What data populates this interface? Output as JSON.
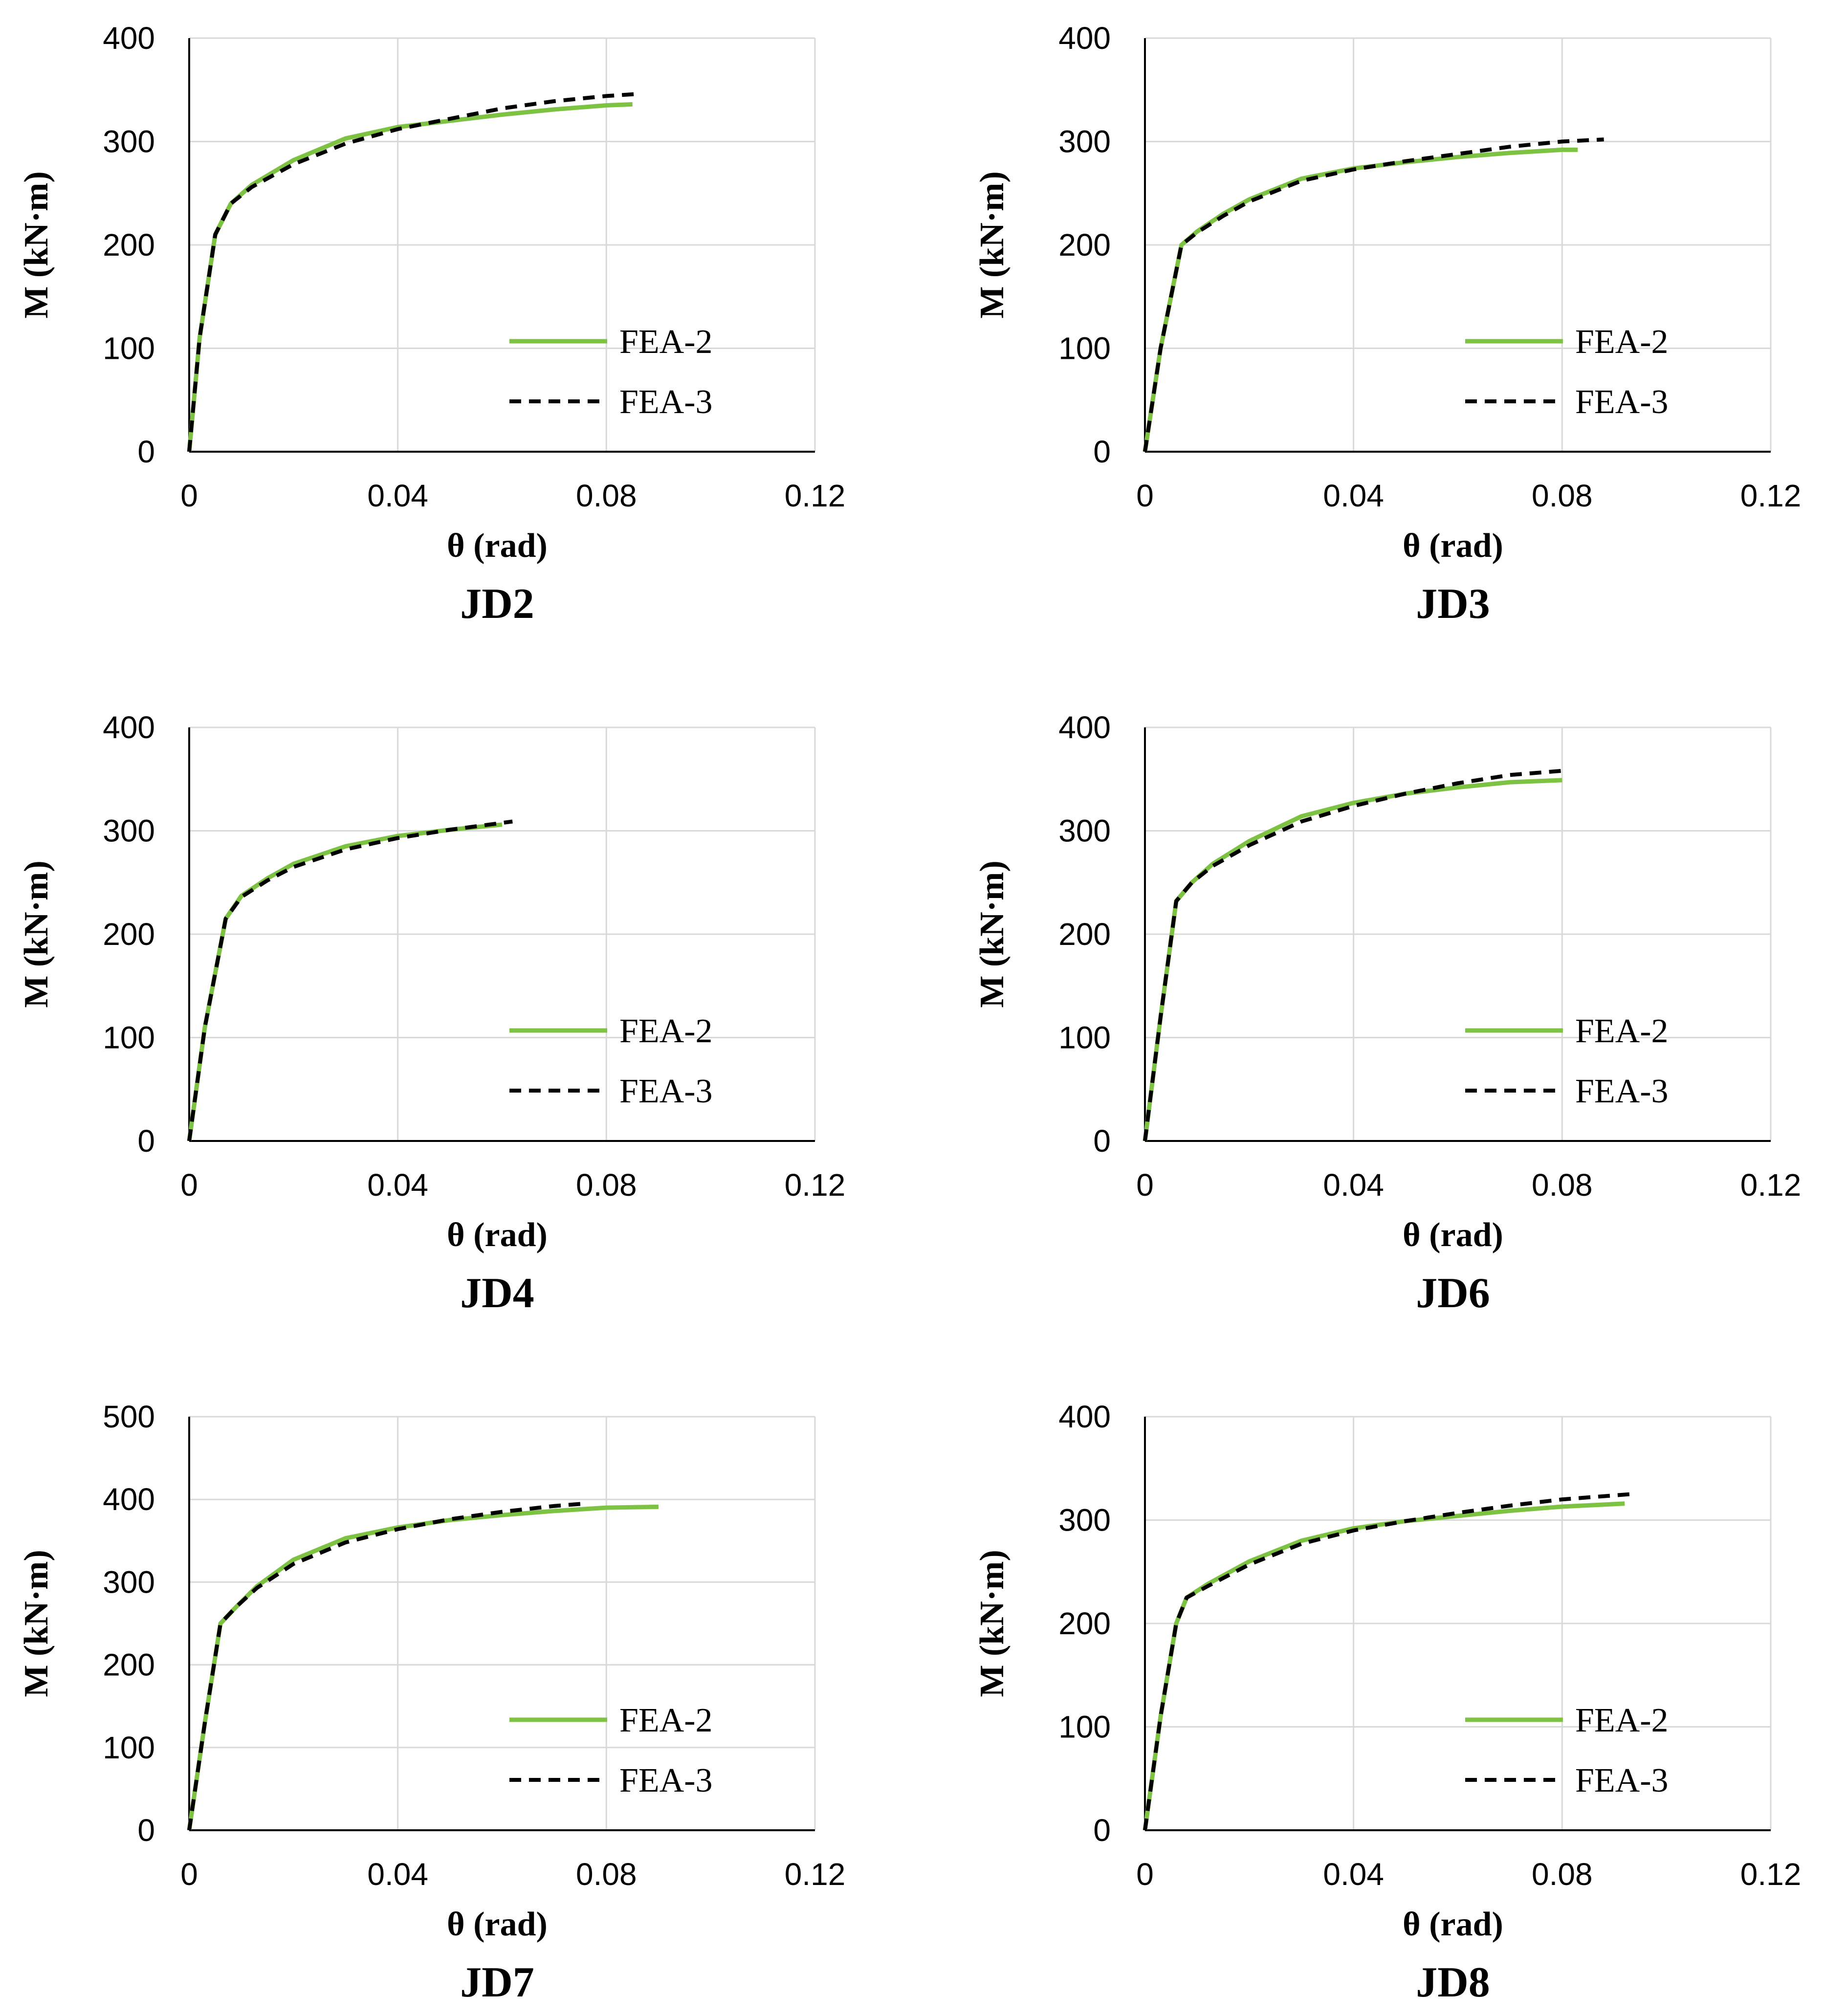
{
  "chart_data": [
    {
      "type": "line",
      "title": "JD2",
      "xlabel": "θ (rad)",
      "ylabel": "M (kN·m)",
      "xlim": [
        0,
        0.12
      ],
      "ylim": [
        0,
        400
      ],
      "xticks": [
        "0",
        "0.04",
        "0.08",
        "0.12"
      ],
      "yticks": [
        "0",
        "100",
        "200",
        "300",
        "400"
      ],
      "grid": true,
      "legend_position": "lower-right",
      "series": [
        {
          "name": "FEA-2",
          "color": "#7dc242",
          "style": "solid",
          "x": [
            0,
            0.002,
            0.005,
            0.008,
            0.012,
            0.02,
            0.03,
            0.04,
            0.05,
            0.06,
            0.07,
            0.08,
            0.085
          ],
          "y": [
            0,
            110,
            210,
            240,
            258,
            282,
            303,
            314,
            320,
            326,
            331,
            335,
            336
          ]
        },
        {
          "name": "FEA-3",
          "color": "#000000",
          "style": "dashed",
          "x": [
            0,
            0.002,
            0.005,
            0.008,
            0.012,
            0.02,
            0.03,
            0.04,
            0.05,
            0.06,
            0.07,
            0.08,
            0.086
          ],
          "y": [
            0,
            110,
            210,
            240,
            256,
            278,
            298,
            312,
            322,
            332,
            339,
            344,
            346
          ]
        }
      ]
    },
    {
      "type": "line",
      "title": "JD3",
      "xlabel": "θ (rad)",
      "ylabel": "M (kN·m)",
      "xlim": [
        0,
        0.12
      ],
      "ylim": [
        0,
        400
      ],
      "xticks": [
        "0",
        "0.04",
        "0.08",
        "0.12"
      ],
      "yticks": [
        "0",
        "100",
        "200",
        "300",
        "400"
      ],
      "grid": true,
      "legend_position": "lower-right",
      "series": [
        {
          "name": "FEA-2",
          "color": "#7dc242",
          "style": "solid",
          "x": [
            0,
            0.003,
            0.007,
            0.01,
            0.015,
            0.02,
            0.03,
            0.04,
            0.05,
            0.06,
            0.07,
            0.08,
            0.083
          ],
          "y": [
            0,
            100,
            200,
            213,
            230,
            244,
            264,
            274,
            280,
            285,
            289,
            292,
            292
          ]
        },
        {
          "name": "FEA-3",
          "color": "#000000",
          "style": "dashed",
          "x": [
            0,
            0.003,
            0.007,
            0.01,
            0.015,
            0.02,
            0.03,
            0.04,
            0.05,
            0.06,
            0.07,
            0.08,
            0.088
          ],
          "y": [
            0,
            100,
            200,
            212,
            228,
            242,
            262,
            273,
            281,
            288,
            295,
            300,
            302
          ]
        }
      ]
    },
    {
      "type": "line",
      "title": "JD4",
      "xlabel": "θ (rad)",
      "ylabel": "M (kN·m)",
      "xlim": [
        0,
        0.12
      ],
      "ylim": [
        0,
        400
      ],
      "xticks": [
        "0",
        "0.04",
        "0.08",
        "0.12"
      ],
      "yticks": [
        "0",
        "100",
        "200",
        "300",
        "400"
      ],
      "grid": true,
      "legend_position": "lower-right",
      "series": [
        {
          "name": "FEA-2",
          "color": "#7dc242",
          "style": "solid",
          "x": [
            0,
            0.003,
            0.007,
            0.01,
            0.015,
            0.02,
            0.03,
            0.04,
            0.05,
            0.06
          ],
          "y": [
            0,
            110,
            215,
            237,
            254,
            268,
            285,
            295,
            301,
            306
          ]
        },
        {
          "name": "FEA-3",
          "color": "#000000",
          "style": "dashed",
          "x": [
            0,
            0.003,
            0.007,
            0.01,
            0.015,
            0.02,
            0.03,
            0.04,
            0.05,
            0.062
          ],
          "y": [
            0,
            110,
            215,
            236,
            252,
            265,
            282,
            293,
            301,
            309
          ]
        }
      ]
    },
    {
      "type": "line",
      "title": "JD6",
      "xlabel": "θ (rad)",
      "ylabel": "M (kN·m)",
      "xlim": [
        0,
        0.12
      ],
      "ylim": [
        0,
        400
      ],
      "xticks": [
        "0",
        "0.04",
        "0.08",
        "0.12"
      ],
      "yticks": [
        "0",
        "100",
        "200",
        "300",
        "400"
      ],
      "grid": true,
      "legend_position": "lower-right",
      "series": [
        {
          "name": "FEA-2",
          "color": "#7dc242",
          "style": "solid",
          "x": [
            0,
            0.003,
            0.006,
            0.009,
            0.013,
            0.02,
            0.03,
            0.04,
            0.05,
            0.06,
            0.07,
            0.08
          ],
          "y": [
            0,
            120,
            232,
            250,
            268,
            290,
            314,
            327,
            336,
            342,
            347,
            349
          ]
        },
        {
          "name": "FEA-3",
          "color": "#000000",
          "style": "dashed",
          "x": [
            0,
            0.003,
            0.006,
            0.009,
            0.013,
            0.02,
            0.03,
            0.04,
            0.05,
            0.06,
            0.07,
            0.08
          ],
          "y": [
            0,
            120,
            232,
            250,
            266,
            286,
            309,
            324,
            336,
            346,
            354,
            358
          ]
        }
      ]
    },
    {
      "type": "line",
      "title": "JD7",
      "xlabel": "θ (rad)",
      "ylabel": "M (kN·m)",
      "xlim": [
        0,
        0.12
      ],
      "ylim": [
        0,
        500
      ],
      "xticks": [
        "0",
        "0.04",
        "0.08",
        "0.12"
      ],
      "yticks": [
        "0",
        "100",
        "200",
        "300",
        "400",
        "500"
      ],
      "grid": true,
      "legend_position": "lower-right",
      "series": [
        {
          "name": "FEA-2",
          "color": "#7dc242",
          "style": "solid",
          "x": [
            0,
            0.003,
            0.006,
            0.009,
            0.013,
            0.02,
            0.03,
            0.04,
            0.05,
            0.06,
            0.07,
            0.08,
            0.09
          ],
          "y": [
            0,
            130,
            250,
            270,
            295,
            327,
            353,
            366,
            375,
            381,
            386,
            390,
            391
          ]
        },
        {
          "name": "FEA-3",
          "color": "#000000",
          "style": "dashed",
          "x": [
            0,
            0.003,
            0.006,
            0.009,
            0.013,
            0.02,
            0.03,
            0.04,
            0.05,
            0.06,
            0.07,
            0.076
          ],
          "y": [
            0,
            130,
            250,
            270,
            293,
            322,
            348,
            364,
            376,
            385,
            392,
            395
          ]
        }
      ]
    },
    {
      "type": "line",
      "title": "JD8",
      "xlabel": "θ (rad)",
      "ylabel": "M (kN·m)",
      "xlim": [
        0,
        0.12
      ],
      "ylim": [
        0,
        400
      ],
      "xticks": [
        "0",
        "0.04",
        "0.08",
        "0.12"
      ],
      "yticks": [
        "0",
        "100",
        "200",
        "300",
        "400"
      ],
      "grid": true,
      "legend_position": "lower-right",
      "series": [
        {
          "name": "FEA-2",
          "color": "#7dc242",
          "style": "solid",
          "x": [
            0,
            0.003,
            0.006,
            0.008,
            0.012,
            0.02,
            0.03,
            0.04,
            0.05,
            0.06,
            0.07,
            0.08,
            0.092
          ],
          "y": [
            0,
            110,
            200,
            225,
            238,
            260,
            280,
            292,
            299,
            304,
            309,
            313,
            316
          ]
        },
        {
          "name": "FEA-3",
          "color": "#000000",
          "style": "dashed",
          "x": [
            0,
            0.003,
            0.006,
            0.008,
            0.012,
            0.02,
            0.03,
            0.04,
            0.05,
            0.06,
            0.07,
            0.08,
            0.093
          ],
          "y": [
            0,
            110,
            200,
            225,
            236,
            257,
            277,
            290,
            299,
            307,
            314,
            320,
            325
          ]
        }
      ]
    }
  ]
}
